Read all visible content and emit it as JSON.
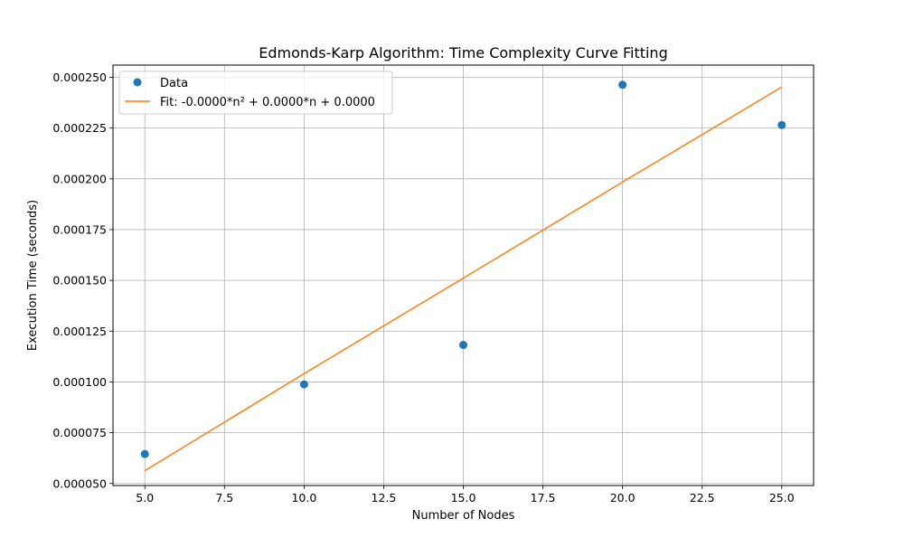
{
  "chart_data": {
    "type": "scatter",
    "title": "Edmonds-Karp Algorithm: Time Complexity Curve Fitting",
    "xlabel": "Number of Nodes",
    "ylabel": "Execution Time (seconds)",
    "xlim": [
      4.0,
      26.0
    ],
    "ylim": [
      4.9e-05,
      0.000256
    ],
    "xticks": [
      5.0,
      7.5,
      10.0,
      12.5,
      15.0,
      17.5,
      20.0,
      22.5,
      25.0
    ],
    "xtick_labels": [
      "5.0",
      "7.5",
      "10.0",
      "12.5",
      "15.0",
      "17.5",
      "20.0",
      "22.5",
      "25.0"
    ],
    "yticks": [
      5e-05,
      7.5e-05,
      0.0001,
      0.000125,
      0.00015,
      0.000175,
      0.0002,
      0.000225,
      0.00025
    ],
    "ytick_labels": [
      "0.000050",
      "0.000075",
      "0.000100",
      "0.000125",
      "0.000150",
      "0.000175",
      "0.000200",
      "0.000225",
      "0.000250"
    ],
    "grid": true,
    "legend_position": "top-left",
    "series": [
      {
        "name": "Data",
        "kind": "points",
        "color": "#1f77b4",
        "x": [
          5,
          10,
          15,
          20,
          25
        ],
        "y": [
          6.45e-05,
          9.88e-05,
          0.0001182,
          0.0002463,
          0.0002265
        ]
      },
      {
        "name": "Fit: -0.0000*n² + 0.0000*n + 0.0000",
        "kind": "line",
        "color": "#ff7f0e",
        "x": [
          5,
          10,
          15,
          20,
          25
        ],
        "y": [
          5.63e-05,
          0.0001041,
          0.0001511,
          0.0001984,
          0.0002452
        ]
      }
    ]
  }
}
